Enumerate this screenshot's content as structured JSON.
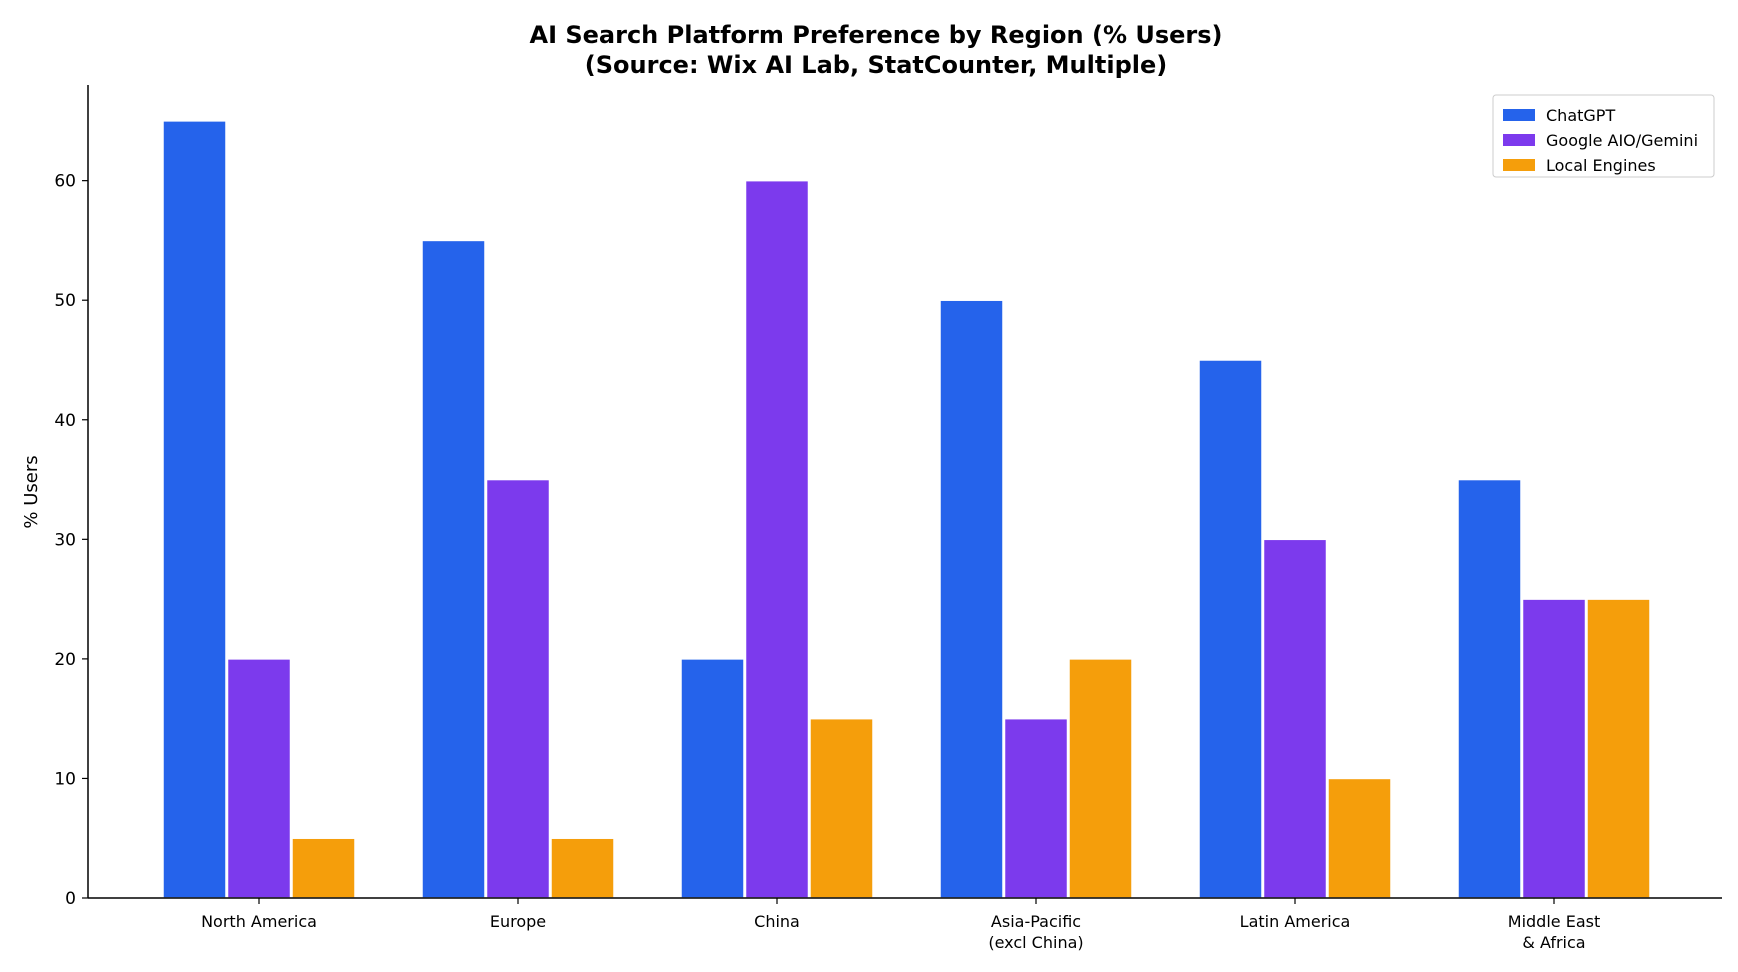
{
  "chart_data": {
    "type": "bar",
    "title_line1": "AI Search Platform Preference by Region (% Users)",
    "title_line2": "(Source: Wix AI Lab, StatCounter, Multiple)",
    "xlabel": "",
    "ylabel": "% Users",
    "ylim": [
      0,
      68
    ],
    "yticks": [
      0,
      10,
      20,
      30,
      40,
      50,
      60
    ],
    "categories": [
      [
        "North America"
      ],
      [
        "Europe"
      ],
      [
        "China"
      ],
      [
        "Asia-Pacific",
        "(excl China)"
      ],
      [
        "Latin America"
      ],
      [
        "Middle East",
        "& Africa"
      ]
    ],
    "series": [
      {
        "name": "ChatGPT",
        "color": "#2563eb",
        "values": [
          65,
          55,
          20,
          50,
          45,
          35
        ]
      },
      {
        "name": "Google AIO/Gemini",
        "color": "#7c3aed",
        "values": [
          20,
          35,
          60,
          15,
          30,
          25
        ]
      },
      {
        "name": "Local Engines",
        "color": "#f59e0b",
        "values": [
          5,
          5,
          15,
          20,
          10,
          25
        ]
      }
    ],
    "grid": false,
    "legend_position": "top-right"
  }
}
